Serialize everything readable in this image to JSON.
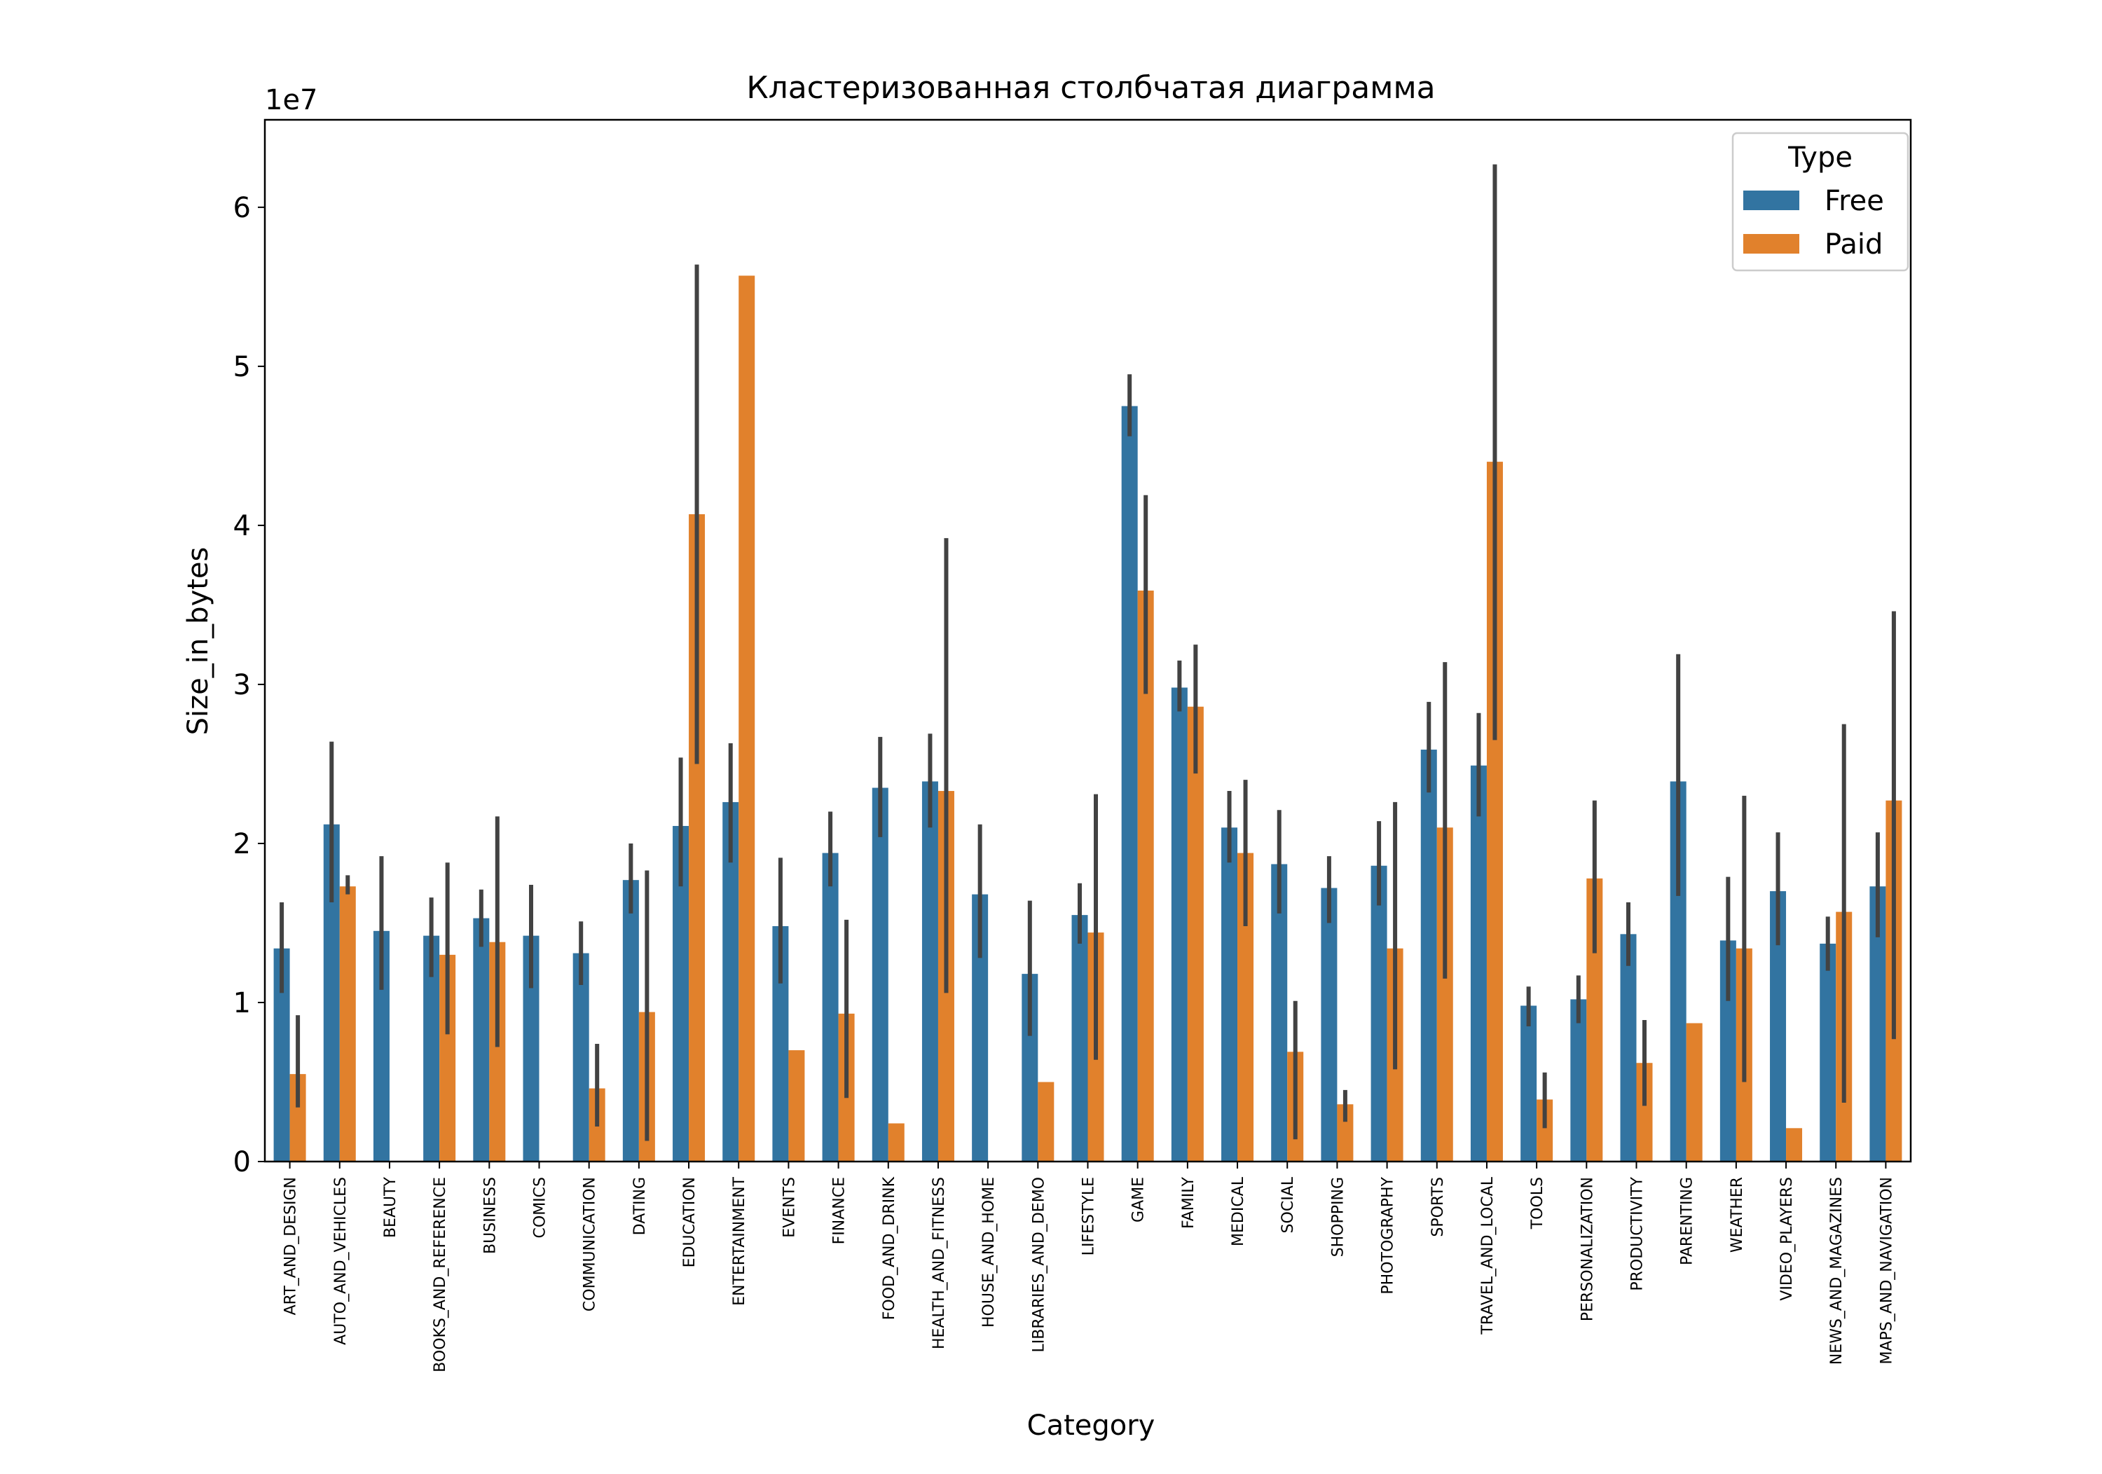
{
  "chart_data": {
    "type": "bar",
    "title": "Кластеризованная столбчатая диаграмма",
    "xlabel": "Category",
    "ylabel": "Size_in_bytes",
    "y_multiplier_label": "1e7",
    "ylim": [
      0,
      6.55
    ],
    "y_ticks": [
      0,
      1,
      2,
      3,
      4,
      5,
      6
    ],
    "y_tick_labels": [
      "0",
      "1",
      "2",
      "3",
      "4",
      "5",
      "6"
    ],
    "legend": {
      "title": "Type",
      "position": "top-right"
    },
    "categories": [
      "ART_AND_DESIGN",
      "AUTO_AND_VEHICLES",
      "BEAUTY",
      "BOOKS_AND_REFERENCE",
      "BUSINESS",
      "COMICS",
      "COMMUNICATION",
      "DATING",
      "EDUCATION",
      "ENTERTAINMENT",
      "EVENTS",
      "FINANCE",
      "FOOD_AND_DRINK",
      "HEALTH_AND_FITNESS",
      "HOUSE_AND_HOME",
      "LIBRARIES_AND_DEMO",
      "LIFESTYLE",
      "GAME",
      "FAMILY",
      "MEDICAL",
      "SOCIAL",
      "SHOPPING",
      "PHOTOGRAPHY",
      "SPORTS",
      "TRAVEL_AND_LOCAL",
      "TOOLS",
      "PERSONALIZATION",
      "PRODUCTIVITY",
      "PARENTING",
      "WEATHER",
      "VIDEO_PLAYERS",
      "NEWS_AND_MAGAZINES",
      "MAPS_AND_NAVIGATION"
    ],
    "series": [
      {
        "name": "Free",
        "color": "#3274a1",
        "values": [
          1.34,
          2.12,
          1.45,
          1.42,
          1.53,
          1.42,
          1.31,
          1.77,
          2.11,
          2.26,
          1.48,
          1.94,
          2.35,
          2.39,
          1.68,
          1.18,
          1.55,
          4.75,
          2.98,
          2.1,
          1.87,
          1.72,
          1.86,
          2.59,
          2.49,
          0.98,
          1.02,
          1.43,
          2.39,
          1.39,
          1.7,
          1.37,
          1.73
        ],
        "err_low": [
          1.06,
          1.63,
          1.08,
          1.16,
          1.35,
          1.09,
          1.11,
          1.56,
          1.73,
          1.88,
          1.12,
          1.73,
          2.04,
          2.1,
          1.28,
          0.79,
          1.37,
          4.56,
          2.83,
          1.88,
          1.56,
          1.5,
          1.61,
          2.32,
          2.17,
          0.85,
          0.87,
          1.23,
          1.67,
          1.01,
          1.36,
          1.2,
          1.41
        ],
        "err_high": [
          1.63,
          2.64,
          1.92,
          1.66,
          1.71,
          1.74,
          1.51,
          2.0,
          2.54,
          2.63,
          1.91,
          2.2,
          2.67,
          2.69,
          2.12,
          1.64,
          1.75,
          4.95,
          3.15,
          2.33,
          2.21,
          1.92,
          2.14,
          2.89,
          2.82,
          1.1,
          1.17,
          1.63,
          3.19,
          1.79,
          2.07,
          1.54,
          2.07
        ]
      },
      {
        "name": "Paid",
        "color": "#e1812c",
        "values": [
          0.55,
          1.73,
          null,
          1.3,
          1.38,
          null,
          0.46,
          0.94,
          4.07,
          5.57,
          0.7,
          0.93,
          0.24,
          2.33,
          null,
          0.5,
          1.44,
          3.59,
          2.86,
          1.94,
          0.69,
          0.36,
          1.34,
          2.1,
          4.4,
          0.39,
          1.78,
          0.62,
          0.87,
          1.34,
          0.21,
          1.57,
          2.27
        ],
        "err_low": [
          0.34,
          1.68,
          null,
          0.8,
          0.72,
          null,
          0.22,
          0.13,
          2.5,
          null,
          null,
          0.4,
          null,
          1.06,
          null,
          null,
          0.64,
          2.94,
          2.44,
          1.48,
          0.14,
          0.25,
          0.58,
          1.15,
          2.65,
          0.21,
          1.31,
          0.35,
          null,
          0.5,
          null,
          0.37,
          0.77
        ],
        "err_high": [
          0.92,
          1.8,
          null,
          1.88,
          2.17,
          null,
          0.74,
          1.83,
          5.64,
          null,
          null,
          1.52,
          null,
          3.92,
          null,
          null,
          2.31,
          4.19,
          3.25,
          2.4,
          1.01,
          0.45,
          2.26,
          3.14,
          6.27,
          0.56,
          2.27,
          0.89,
          null,
          2.3,
          null,
          2.75,
          3.46
        ]
      }
    ]
  }
}
